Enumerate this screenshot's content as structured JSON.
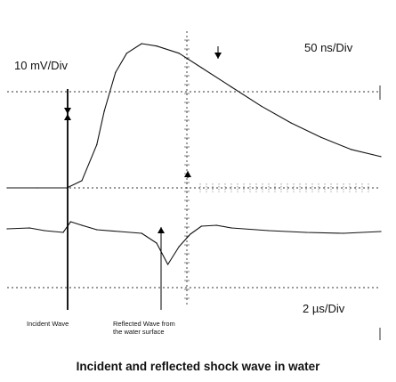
{
  "chart_data": {
    "type": "line",
    "title": "Incident and reflected shock wave in water",
    "scale_labels": {
      "upper_time": "50 ns/Div",
      "voltage": "10 mV/Div",
      "lower_time": "2 µs/Div"
    },
    "annotations": {
      "incident": "Incident Wave",
      "reflected_line1": "Reflected Wave from",
      "reflected_line2": "the water surface"
    },
    "grid": "dotted",
    "series": [
      {
        "trace": "upper",
        "x_units": "50 ns/Div",
        "x": [
          0,
          0.4,
          0.8,
          1.0,
          1.2,
          1.3,
          1.45,
          1.6,
          1.8,
          2.0,
          2.3,
          2.6,
          3.0,
          3.4,
          3.8,
          4.2,
          4.6,
          5.0
        ],
        "y": [
          0,
          0,
          0,
          0.3,
          1.8,
          3.2,
          4.8,
          5.6,
          6.0,
          5.9,
          5.6,
          5.0,
          4.2,
          3.4,
          2.7,
          2.1,
          1.6,
          1.3
        ]
      },
      {
        "trace": "lower",
        "x_units": "2 µs/Div",
        "x": [
          0,
          0.3,
          0.5,
          0.75,
          0.85,
          1.0,
          1.2,
          1.5,
          1.8,
          2.0,
          2.15,
          2.3,
          2.45,
          2.6,
          2.8,
          3.0,
          3.5,
          4.0,
          4.5,
          5.0
        ],
        "y": [
          0,
          0.1,
          -0.2,
          -0.4,
          0.8,
          0.4,
          -0.1,
          -0.3,
          -0.5,
          -1.6,
          -4.0,
          -2.0,
          -0.6,
          0.3,
          0.4,
          0.1,
          -0.2,
          -0.4,
          -0.5,
          -0.3
        ]
      }
    ]
  }
}
